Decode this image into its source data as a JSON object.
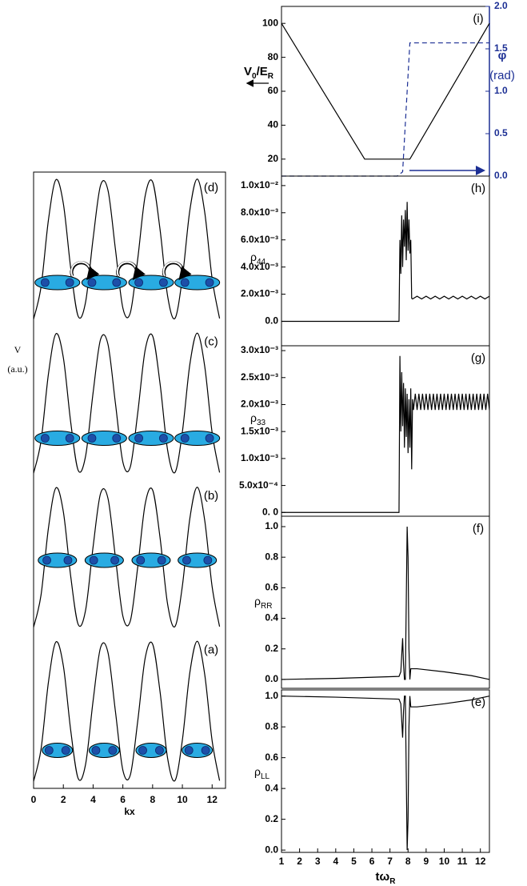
{
  "chart_data": [
    {
      "type": "line",
      "panel_labels": [
        "(d)",
        "(c)",
        "(b)",
        "(a)"
      ],
      "y_label": "V",
      "y_label_unit": "(a.u.)",
      "x_label": "kx",
      "xlim": [
        0,
        12.9
      ],
      "xticks": [
        0,
        2,
        4,
        6,
        8,
        10,
        12
      ],
      "ylim": [
        -1.1,
        1.1
      ],
      "color": "#000000",
      "x": [
        0,
        0.5,
        1,
        1.5,
        2,
        2.5,
        3,
        3.5,
        4,
        4.5,
        5,
        5.5,
        6,
        6.5,
        7,
        7.5,
        8,
        8.5,
        9,
        9.5,
        10,
        10.5,
        11,
        11.5,
        12,
        12.5
      ],
      "values": [
        -1,
        -0.54,
        0.42,
        0.99,
        0.65,
        -0.28,
        -0.96,
        -0.75,
        0.15,
        0.91,
        0.84,
        0,
        -0.84,
        -0.91,
        -0.14,
        0.76,
        0.96,
        0.28,
        -0.66,
        -0.99,
        -0.41,
        0.55,
        1,
        0.53,
        -0.42,
        -0.99
      ]
    },
    {
      "type": "line",
      "panel_label": "(i)",
      "y_label": [
        "V",
        "0",
        "/E",
        "R"
      ],
      "y2_label": "φ",
      "y2_label_unit": "(rad)",
      "xlim": [
        1,
        12.5
      ],
      "ylim": [
        10,
        110
      ],
      "yticks": [
        20,
        40,
        60,
        80,
        100
      ],
      "y2lim": [
        0,
        2
      ],
      "y2ticks": [
        {
          "value": 0,
          "label": "0.0"
        },
        {
          "value": 0.5,
          "label": "0.5"
        },
        {
          "value": 1,
          "label": "1.0"
        },
        {
          "value": 1.5,
          "label": "1.5"
        },
        {
          "value": 2,
          "label": "2.0"
        }
      ],
      "series": [
        {
          "color": "#000000",
          "x": [
            1,
            5.6,
            8.1,
            12.5
          ],
          "values": [
            100,
            20,
            20,
            100
          ]
        },
        {
          "color": "#1c2f94",
          "axis": "y2",
          "dash": true,
          "x": [
            1,
            7.4,
            7.7,
            8.1,
            12.5
          ],
          "values": [
            0,
            0,
            0.05,
            1.57,
            1.57
          ]
        }
      ]
    },
    {
      "type": "line",
      "panel_label": "(h)",
      "y_label": [
        "ρ",
        "44"
      ],
      "xlim": [
        1,
        12.5
      ],
      "ylim": [
        -0.0018,
        0.0107
      ],
      "yticks": [
        {
          "value": 0,
          "label": "0.0"
        },
        {
          "value": 0.002,
          "label": "2.0x10⁻³"
        },
        {
          "value": 0.004,
          "label": "4.0x10⁻³"
        },
        {
          "value": 0.006,
          "label": "6.0x10⁻³"
        },
        {
          "value": 0.008,
          "label": "8.0x10⁻³"
        },
        {
          "value": 0.01,
          "label": "1.0x10⁻²"
        }
      ],
      "series": [
        {
          "color": "#000000",
          "x": [
            1,
            7.5,
            7.55,
            7.6,
            7.65,
            7.7,
            7.75,
            7.8,
            7.85,
            7.9,
            7.95,
            8.0,
            8.05,
            8.1,
            8.15,
            8.2,
            8.25,
            8.5,
            8.75,
            9,
            9.25,
            9.5,
            9.75,
            10,
            10.25,
            10.5,
            10.75,
            11,
            11.25,
            11.5,
            11.75,
            12,
            12.25,
            12.5
          ],
          "values": [
            0,
            0,
            0.006,
            0.0035,
            0.0078,
            0.004,
            0.0075,
            0.0055,
            0.0082,
            0.0045,
            0.0088,
            0.0052,
            0.0075,
            0.005,
            0.006,
            0.0017,
            0.00165,
            0.00185,
            0.00165,
            0.00185,
            0.00165,
            0.00185,
            0.00165,
            0.00185,
            0.00165,
            0.00185,
            0.00165,
            0.00185,
            0.00165,
            0.00185,
            0.00165,
            0.00185,
            0.00165,
            0.00185
          ]
        }
      ]
    },
    {
      "type": "line",
      "panel_label": "(g)",
      "y_label": [
        "ρ",
        "33"
      ],
      "xlim": [
        1,
        12.5
      ],
      "ylim": [
        -7e-05,
        0.00309
      ],
      "yticks": [
        {
          "value": 0,
          "label": "0. 0"
        },
        {
          "value": 0.0005,
          "label": "5.0x10⁻⁴"
        },
        {
          "value": 0.001,
          "label": "1.0x10⁻³"
        },
        {
          "value": 0.0015,
          "label": "1.5x10⁻³"
        },
        {
          "value": 0.002,
          "label": "2.0x10⁻³"
        },
        {
          "value": 0.0025,
          "label": "2.5x10⁻³"
        },
        {
          "value": 0.003,
          "label": "3.0x10⁻³"
        }
      ],
      "series": [
        {
          "color": "#000000",
          "x": [
            1,
            7.5,
            7.55,
            7.6,
            7.65,
            7.7,
            7.75,
            7.8,
            7.85,
            7.9,
            7.95,
            8.0,
            8.05,
            8.1,
            8.15,
            8.2,
            8.25,
            8.3,
            8.4,
            8.5,
            8.6,
            8.7,
            8.8,
            8.9,
            9.0,
            9.1,
            9.2,
            9.3,
            9.4,
            9.5,
            9.6,
            9.7,
            9.8,
            9.9,
            10.0,
            10.1,
            10.2,
            10.3,
            10.4,
            10.5,
            10.6,
            10.7,
            10.8,
            10.9,
            11.0,
            11.1,
            11.2,
            11.3,
            11.4,
            11.5,
            11.6,
            11.7,
            11.8,
            11.9,
            12.0,
            12.1,
            12.2,
            12.3,
            12.4,
            12.5
          ],
          "values": [
            0,
            0,
            0.0029,
            0.0015,
            0.0026,
            0.0016,
            0.0024,
            0.0012,
            0.0023,
            0.0014,
            0.0022,
            0.0011,
            0.0021,
            0.0012,
            0.0023,
            0.0008,
            0.0021,
            0.0019,
            0.0022,
            0.0019,
            0.0022,
            0.0019,
            0.0022,
            0.0019,
            0.0022,
            0.0019,
            0.0022,
            0.0019,
            0.0022,
            0.0019,
            0.0022,
            0.0019,
            0.0022,
            0.0019,
            0.0022,
            0.0019,
            0.0022,
            0.0019,
            0.0022,
            0.0019,
            0.0022,
            0.0019,
            0.0022,
            0.0019,
            0.0022,
            0.0019,
            0.0022,
            0.0019,
            0.0022,
            0.0019,
            0.0022,
            0.0019,
            0.0022,
            0.0019,
            0.0022,
            0.0019,
            0.0022,
            0.0019,
            0.0022,
            0.0019
          ]
        }
      ]
    },
    {
      "type": "line",
      "panel_label": "(f)",
      "y_label": [
        "ρ",
        "RR"
      ],
      "xlim": [
        1,
        12.5
      ],
      "ylim": [
        -0.058,
        1.068
      ],
      "yticks": [
        {
          "value": 0,
          "label": "0.0"
        },
        {
          "value": 0.2,
          "label": "0.2"
        },
        {
          "value": 0.4,
          "label": "0.4"
        },
        {
          "value": 0.6,
          "label": "0.6"
        },
        {
          "value": 0.8,
          "label": "0.8"
        },
        {
          "value": 1,
          "label": "1.0"
        }
      ],
      "series": [
        {
          "color": "#000000",
          "x": [
            1,
            4,
            7.5,
            7.6,
            7.7,
            7.75,
            7.8,
            7.85,
            7.9,
            7.95,
            8.0,
            8.05,
            8.1,
            8.15,
            8.5,
            10,
            11.5,
            12.5
          ],
          "values": [
            0,
            0.007,
            0.02,
            0.05,
            0.27,
            0.1,
            0,
            0,
            0.5,
            1,
            0.8,
            0.2,
            0,
            0.07,
            0.07,
            0.05,
            0.025,
            0
          ]
        }
      ]
    },
    {
      "type": "line",
      "panel_label": "(e)",
      "y_label": [
        "ρ",
        "LL"
      ],
      "x_label": [
        "tω",
        "R"
      ],
      "xlim": [
        1,
        12.5
      ],
      "xticks": [
        1,
        2,
        3,
        4,
        5,
        6,
        7,
        8,
        9,
        10,
        11,
        12
      ],
      "ylim": [
        -0.015,
        1.04
      ],
      "yticks": [
        {
          "value": 0,
          "label": "0.0"
        },
        {
          "value": 0.2,
          "label": "0.2"
        },
        {
          "value": 0.4,
          "label": "0.4"
        },
        {
          "value": 0.6,
          "label": "0.6"
        },
        {
          "value": 0.8,
          "label": "0.8"
        },
        {
          "value": 1,
          "label": "1.0"
        }
      ],
      "series": [
        {
          "color": "#000000",
          "x": [
            1,
            4,
            7.5,
            7.6,
            7.7,
            7.75,
            7.8,
            7.85,
            7.9,
            7.95,
            8.0,
            8.05,
            8.1,
            8.15,
            8.5,
            10,
            11.5,
            12.5
          ],
          "values": [
            1,
            0.993,
            0.98,
            0.95,
            0.73,
            0.9,
            1,
            1,
            0.5,
            0,
            0.2,
            0.8,
            1,
            0.93,
            0.93,
            0.95,
            0.975,
            1
          ]
        }
      ]
    }
  ]
}
